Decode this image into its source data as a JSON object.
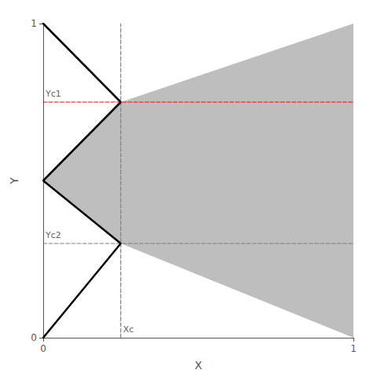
{
  "chart_data": {
    "type": "line",
    "xlabel": "X",
    "ylabel": "Y",
    "xlim": [
      0,
      1
    ],
    "ylim": [
      0,
      1
    ],
    "xticks": [
      0,
      1
    ],
    "yticks": [
      0,
      1
    ],
    "grid": false,
    "series": [
      {
        "type": "polygon",
        "color": "#bebebe",
        "x": [
          0,
          0.25,
          1.0,
          1.0,
          0.25
        ],
        "values": [
          0.5,
          0.75,
          1.0,
          0.0,
          0.3
        ]
      },
      {
        "type": "line",
        "line_style": "dashed",
        "color": "#ff0000",
        "x": [
          0,
          1
        ],
        "values": [
          0.75,
          0.75
        ]
      },
      {
        "type": "line",
        "line_style": "dashed",
        "color": "#808080",
        "x": [
          0,
          1
        ],
        "values": [
          0.3,
          0.3
        ]
      },
      {
        "type": "line",
        "line_style": "dashed",
        "color": "#808080",
        "x": [
          0.25,
          0.25
        ],
        "values": [
          0,
          1
        ]
      },
      {
        "type": "line",
        "line_style": "solid",
        "color": "#000000",
        "x": [
          0,
          0.25,
          0,
          0.25,
          0
        ],
        "values": [
          1.0,
          0.75,
          0.5,
          0.3,
          0.0
        ]
      }
    ],
    "annotations": [
      {
        "text": "Yc1",
        "x": 0,
        "y": 0.75
      },
      {
        "text": "Yc2",
        "x": 0,
        "y": 0.3
      },
      {
        "text": "Xc",
        "x": 0.25,
        "y": 0
      }
    ]
  }
}
